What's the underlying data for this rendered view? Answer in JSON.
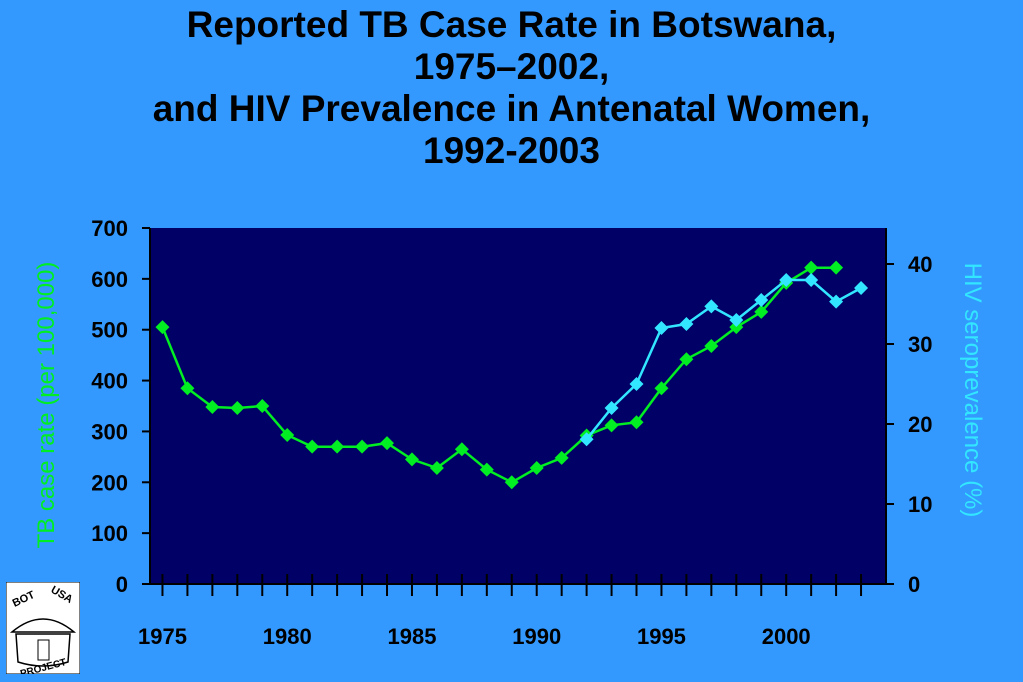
{
  "title_lines": [
    "Reported TB Case Rate in Botswana,",
    "1975–2002,",
    "and HIV Prevalence in Antenatal Women,",
    "1992-2003"
  ],
  "logo": {
    "text_top_left": "BOT",
    "text_top_right": "USA",
    "text_bottom": "PROJECT"
  },
  "colors": {
    "background": "#3399ff",
    "plot_bg": "#000066",
    "tb_series": "#00ee22",
    "hiv_series": "#33e6ff"
  },
  "chart_data": {
    "type": "line",
    "xlim": [
      1974.5,
      2004
    ],
    "x_ticks": [
      1975,
      1980,
      1985,
      1990,
      1995,
      2000
    ],
    "left_axis": {
      "label": "TB case rate (per 100,000)",
      "ylim": [
        0,
        700
      ],
      "ticks": [
        0,
        100,
        200,
        300,
        400,
        500,
        600,
        700
      ]
    },
    "right_axis": {
      "label": "HIV seroprevalence (%)",
      "ylim": [
        0,
        44.5
      ],
      "ticks": [
        0,
        10,
        20,
        30,
        40
      ]
    },
    "series": [
      {
        "axis": "left",
        "marker": "diamond",
        "x": [
          1975,
          1976,
          1977,
          1978,
          1979,
          1980,
          1981,
          1982,
          1983,
          1984,
          1985,
          1986,
          1987,
          1988,
          1989,
          1990,
          1991,
          1992,
          1993,
          1994,
          1995,
          1996,
          1997,
          1998,
          1999,
          2000,
          2001,
          2002
        ],
        "y": [
          505,
          385,
          348,
          346,
          350,
          293,
          270,
          270,
          270,
          277,
          245,
          228,
          265,
          225,
          200,
          228,
          248,
          292,
          312,
          318,
          385,
          442,
          468,
          505,
          535,
          592,
          622,
          622
        ]
      },
      {
        "axis": "right",
        "marker": "diamond",
        "x": [
          1992,
          1993,
          1994,
          1995,
          1996,
          1997,
          1998,
          1999,
          2000,
          2001,
          2002,
          2003
        ],
        "y": [
          18.1,
          22.0,
          25.0,
          32.0,
          32.5,
          34.7,
          33.0,
          35.5,
          38.0,
          38.0,
          35.3,
          37.0
        ]
      }
    ]
  }
}
